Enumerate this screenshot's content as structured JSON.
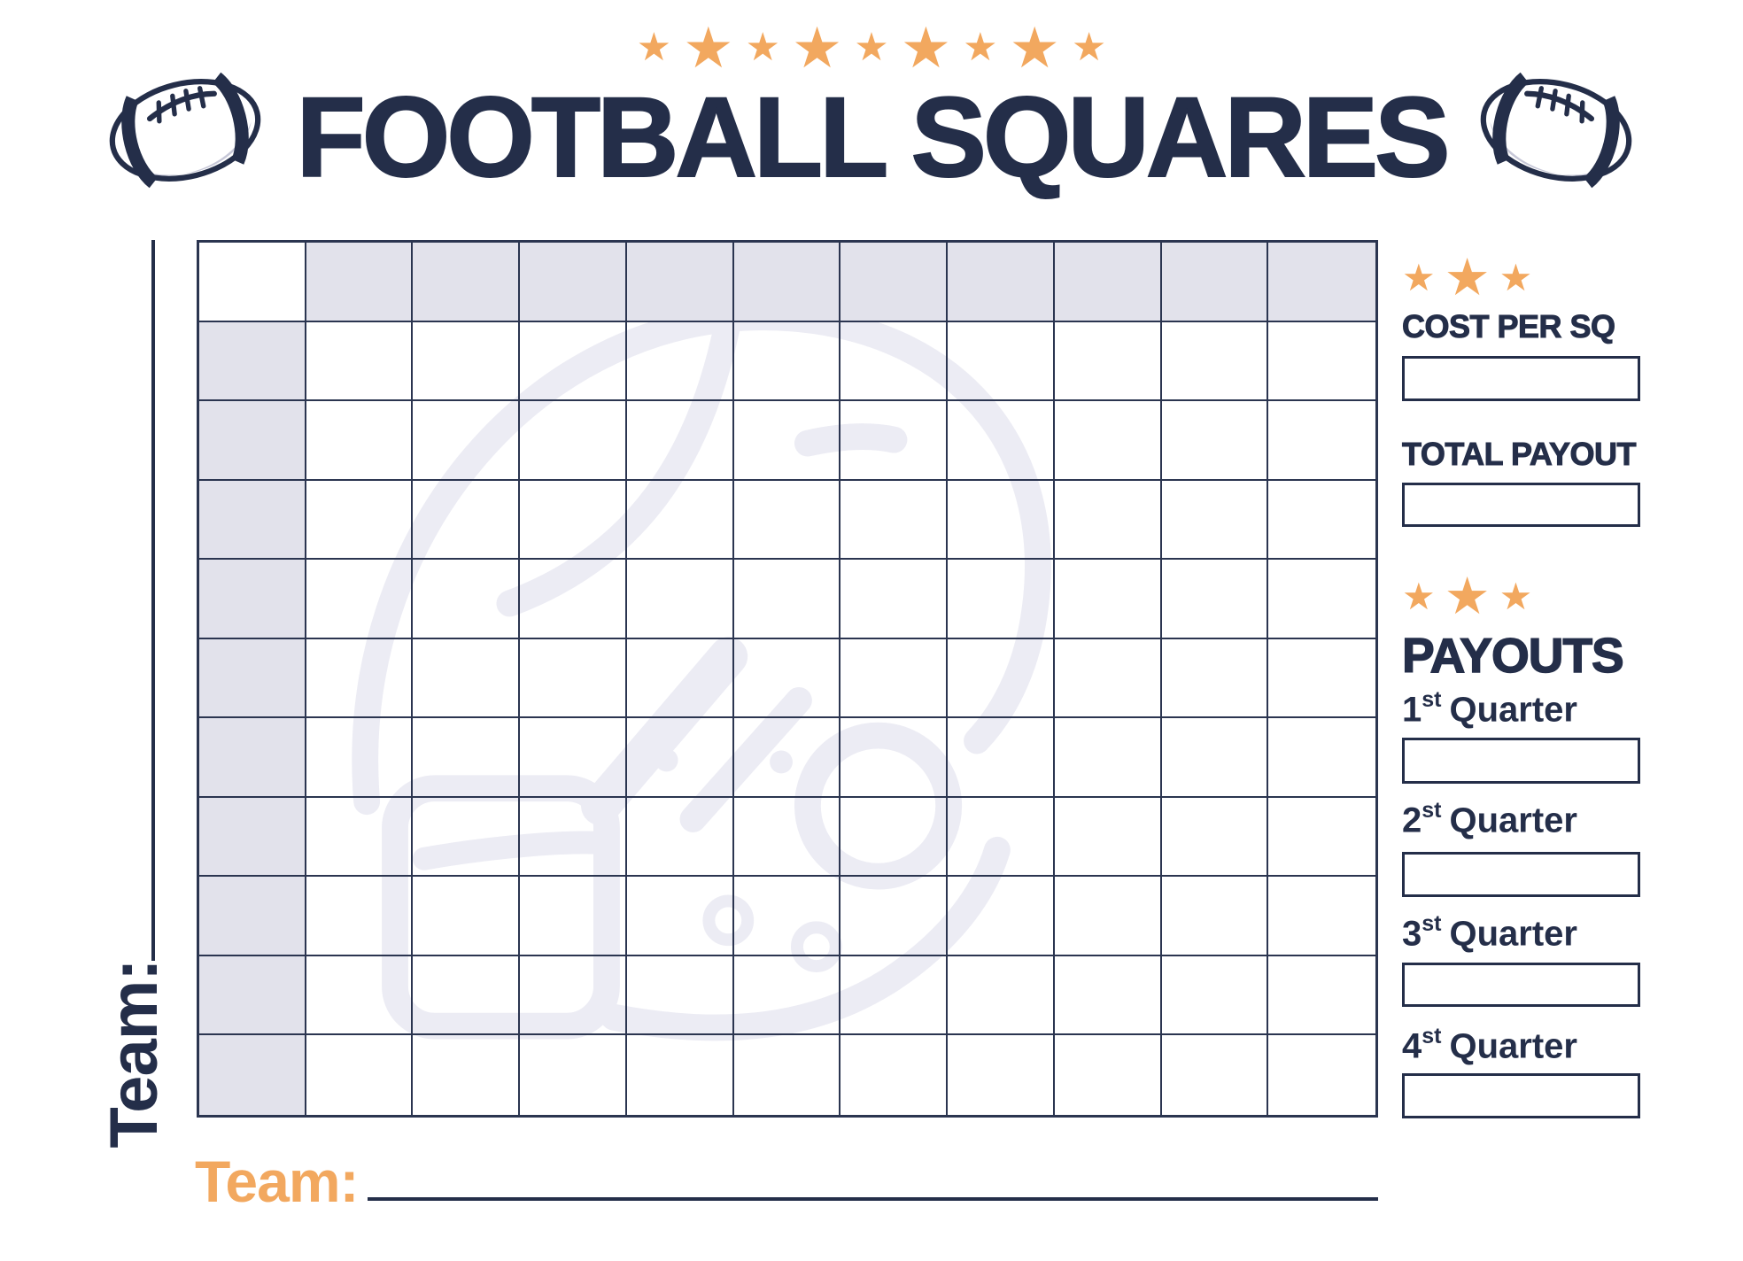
{
  "page_title": "FOOTBALL SQUARES",
  "decor": {
    "star_glyph": "★",
    "header_stars": [
      "sm",
      "lg",
      "sm",
      "lg",
      "sm",
      "lg",
      "sm",
      "lg",
      "sm"
    ],
    "sidebar_stars": [
      "sm",
      "lg",
      "sm"
    ]
  },
  "grid": {
    "rows": 11,
    "cols": 11,
    "header_row_shaded": true,
    "header_col_shaded": true,
    "corner_cell_shaded": false
  },
  "left_axis": {
    "label": "Team:"
  },
  "bottom_axis": {
    "label": "Team:"
  },
  "sidebar": {
    "cost_per_sq_label": "COST PER SQ",
    "cost_per_sq_value": "",
    "total_payout_label": "TOTAL PAYOUT",
    "total_payout_value": "",
    "payouts_heading": "PAYOUTS",
    "quarters": [
      {
        "number": "1",
        "ordinal": "st",
        "word": "Quarter",
        "value": ""
      },
      {
        "number": "2",
        "ordinal": "st",
        "word": "Quarter",
        "value": ""
      },
      {
        "number": "3",
        "ordinal": "st",
        "word": "Quarter",
        "value": ""
      },
      {
        "number": "4",
        "ordinal": "st",
        "word": "Quarter",
        "value": ""
      }
    ]
  },
  "colors": {
    "navy": "#242E49",
    "grid_line": "#2B3550",
    "orange": "#F2A85F",
    "shaded_cell": "#E2E2EB",
    "watermark": "#ECECF4",
    "football_shade": "#C7C8D8"
  }
}
